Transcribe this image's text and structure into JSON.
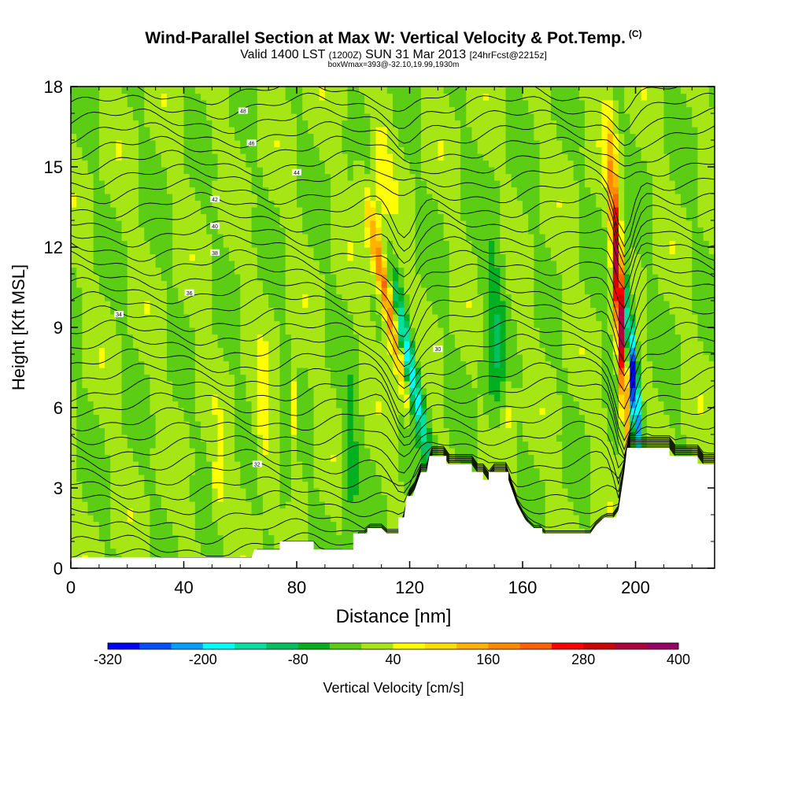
{
  "header": {
    "title": "Wind-Parallel Section at Max W: Vertical Velocity & Pot.Temp.",
    "copyright": "(C)",
    "valid_prefix": "Valid 1400 LST",
    "valid_zulu": "(1200Z)",
    "valid_date": "SUN 31 Mar 2013",
    "forecast": "[24hrFcst@2215z]",
    "box_info": "boxWmax=393@-32.10,19.99,1930m"
  },
  "chart_data": {
    "type": "heatmap",
    "title": "Wind-Parallel Section at Max W: Vertical Velocity & Pot.Temp.",
    "xlabel": "Distance [nm]",
    "ylabel": "Height [Kft MSL]",
    "xlim": [
      0,
      228
    ],
    "ylim": [
      0,
      18
    ],
    "x_ticks": [
      0,
      40,
      80,
      120,
      160,
      200
    ],
    "y_ticks": [
      0,
      3,
      6,
      9,
      12,
      15,
      18
    ],
    "colorbar": {
      "label": "Vertical Velocity [cm/s]",
      "min": -320,
      "max": 400,
      "step": 40,
      "tick_labels": [
        -320,
        -200,
        -80,
        40,
        160,
        280,
        400
      ],
      "colors": [
        "#0000ff",
        "#0050ff",
        "#00a0ff",
        "#00ffff",
        "#00e0a0",
        "#00c060",
        "#00b020",
        "#5acd14",
        "#a6e614",
        "#ffff00",
        "#ffdd00",
        "#ffb300",
        "#ff8c00",
        "#ff6000",
        "#ff0000",
        "#d00000",
        "#b00040",
        "#990066"
      ]
    },
    "terrain": [
      [
        0,
        0.4
      ],
      [
        64,
        0.4
      ],
      [
        65,
        0.7
      ],
      [
        74,
        0.7
      ],
      [
        74,
        1.0
      ],
      [
        86,
        1.0
      ],
      [
        86,
        0.7
      ],
      [
        100,
        0.7
      ],
      [
        100,
        1.3
      ],
      [
        105,
        1.3
      ],
      [
        105,
        1.5
      ],
      [
        110,
        1.5
      ],
      [
        112,
        1.3
      ],
      [
        116,
        1.3
      ],
      [
        116,
        1.9
      ],
      [
        118,
        1.9
      ],
      [
        119,
        2.7
      ],
      [
        121,
        2.7
      ],
      [
        123,
        3.3
      ],
      [
        124,
        3.6
      ],
      [
        126,
        3.6
      ],
      [
        127,
        4.2
      ],
      [
        133,
        4.2
      ],
      [
        133,
        3.9
      ],
      [
        142,
        3.9
      ],
      [
        142,
        3.6
      ],
      [
        146,
        3.6
      ],
      [
        146,
        3.3
      ],
      [
        148,
        3.3
      ],
      [
        148,
        3.6
      ],
      [
        155,
        3.6
      ],
      [
        155,
        3.3
      ],
      [
        156,
        3.0
      ],
      [
        158,
        2.4
      ],
      [
        161,
        1.8
      ],
      [
        164,
        1.5
      ],
      [
        167,
        1.5
      ],
      [
        167,
        1.3
      ],
      [
        184,
        1.3
      ],
      [
        186,
        1.6
      ],
      [
        189,
        1.9
      ],
      [
        193,
        1.9
      ],
      [
        194,
        2.2
      ],
      [
        196,
        3.6
      ],
      [
        197,
        4.5
      ],
      [
        212,
        4.5
      ],
      [
        212,
        4.2
      ],
      [
        222,
        4.2
      ],
      [
        222,
        3.9
      ],
      [
        228,
        3.9
      ]
    ],
    "potential_temperature_labels": [
      "48",
      "46",
      "44",
      "42",
      "40",
      "38",
      "36",
      "34",
      "32",
      "30"
    ]
  },
  "colors": {
    "background": "#ffffff",
    "contour": "#000000"
  }
}
